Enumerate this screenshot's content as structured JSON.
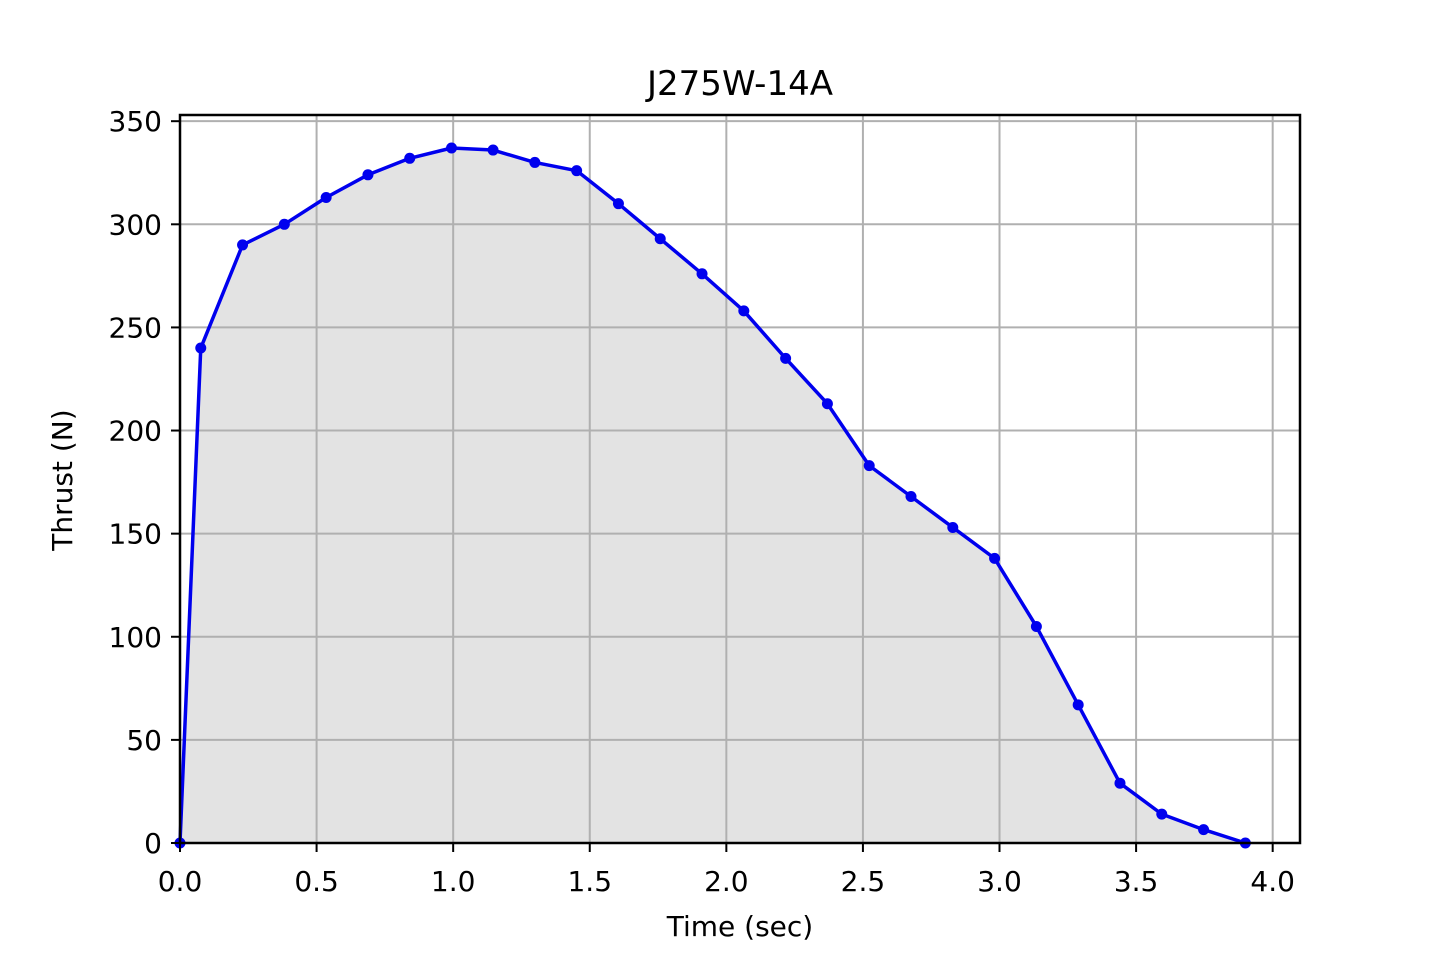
{
  "chart_data": {
    "type": "area",
    "title": "J275W-14A",
    "xlabel": "Time (sec)",
    "ylabel": "Thrust (N)",
    "xlim": [
      0.0,
      4.1
    ],
    "ylim": [
      0,
      353
    ],
    "xticks": [
      0.0,
      0.5,
      1.0,
      1.5,
      2.0,
      2.5,
      3.0,
      3.5,
      4.0
    ],
    "xtick_labels": [
      "0.0",
      "0.5",
      "1.0",
      "1.5",
      "2.0",
      "2.5",
      "3.0",
      "3.5",
      "4.0"
    ],
    "yticks": [
      0,
      50,
      100,
      150,
      200,
      250,
      300,
      350
    ],
    "ytick_labels": [
      "0",
      "50",
      "100",
      "150",
      "200",
      "250",
      "300",
      "350"
    ],
    "grid": true,
    "colors": {
      "line": "#0000ee",
      "fill": "#e3e3e3",
      "grid": "#b0b0b0",
      "axes": "#000000"
    },
    "series": [
      {
        "x": [
          0.0,
          0.076,
          0.229,
          0.382,
          0.535,
          0.688,
          0.841,
          0.994,
          1.146,
          1.299,
          1.452,
          1.605,
          1.758,
          1.911,
          2.064,
          2.217,
          2.37,
          2.523,
          2.676,
          2.829,
          2.982,
          3.135,
          3.288,
          3.441,
          3.594,
          3.747,
          3.9
        ],
        "y": [
          0,
          240,
          290,
          300,
          313,
          324,
          332,
          337,
          336,
          330,
          326,
          310,
          293,
          276,
          258,
          235,
          213,
          183,
          168,
          153,
          138,
          105,
          67,
          29,
          14,
          6.5,
          0
        ]
      }
    ]
  }
}
